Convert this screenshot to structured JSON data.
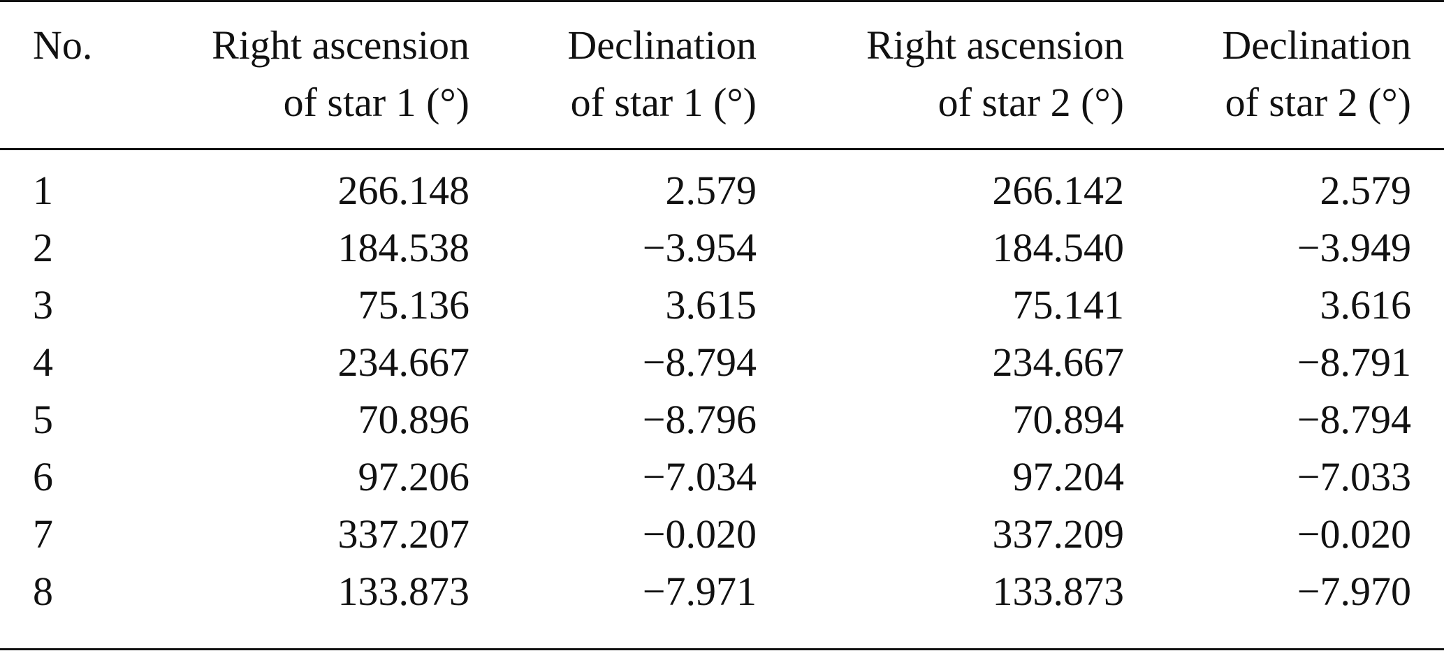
{
  "table": {
    "headers": {
      "no": [
        "No.",
        ""
      ],
      "ra1": [
        "Right ascension",
        "of star 1 (°)"
      ],
      "dec1": [
        "Declination",
        "of star 1 (°)"
      ],
      "ra2": [
        "Right ascension",
        "of star 2 (°)"
      ],
      "dec2": [
        "Declination",
        "of star 2 (°)"
      ]
    },
    "rows": [
      {
        "no": "1",
        "ra1": "266.148",
        "dec1": "2.579",
        "ra2": "266.142",
        "dec2": "2.579"
      },
      {
        "no": "2",
        "ra1": "184.538",
        "dec1": "−3.954",
        "ra2": "184.540",
        "dec2": "−3.949"
      },
      {
        "no": "3",
        "ra1": "75.136",
        "dec1": "3.615",
        "ra2": "75.141",
        "dec2": "3.616"
      },
      {
        "no": "4",
        "ra1": "234.667",
        "dec1": "−8.794",
        "ra2": "234.667",
        "dec2": "−8.791"
      },
      {
        "no": "5",
        "ra1": "70.896",
        "dec1": "−8.796",
        "ra2": "70.894",
        "dec2": "−8.794"
      },
      {
        "no": "6",
        "ra1": "97.206",
        "dec1": "−7.034",
        "ra2": "97.204",
        "dec2": "−7.033"
      },
      {
        "no": "7",
        "ra1": "337.207",
        "dec1": "−0.020",
        "ra2": "337.209",
        "dec2": "−0.020"
      },
      {
        "no": "8",
        "ra1": "133.873",
        "dec1": "−7.971",
        "ra2": "133.873",
        "dec2": "−7.970"
      }
    ]
  }
}
